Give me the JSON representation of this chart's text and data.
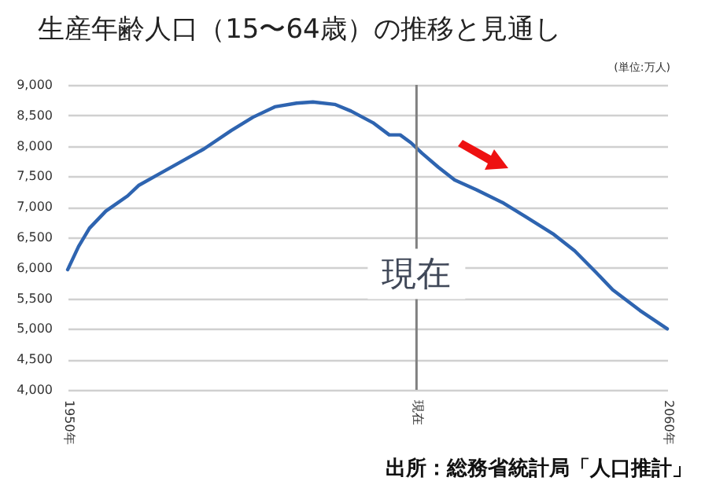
{
  "chart_data": {
    "type": "line",
    "title": "生産年齢人口（15〜64歳）の推移と見通し",
    "x": [
      1950,
      1952,
      1954,
      1957,
      1961,
      1963,
      1966,
      1970,
      1975,
      1980,
      1984,
      1988,
      1992,
      1995,
      1999,
      2002,
      2006,
      2009,
      2011,
      2013,
      2015,
      2018,
      2021,
      2025,
      2030,
      2034,
      2039,
      2043,
      2047,
      2050,
      2055,
      2060
    ],
    "series": [
      {
        "color": "#2e64b0",
        "values": [
          5970,
          6350,
          6650,
          6930,
          7180,
          7350,
          7500,
          7700,
          7950,
          8250,
          8470,
          8640,
          8700,
          8720,
          8680,
          8570,
          8380,
          8180,
          8180,
          8050,
          7880,
          7650,
          7440,
          7280,
          7060,
          6840,
          6560,
          6280,
          5920,
          5640,
          5300,
          5000
        ]
      }
    ],
    "xlim": [
      1950,
      2060
    ],
    "xticks": [
      {
        "value": 1950,
        "label": "1950年"
      },
      {
        "value": 2014,
        "label": "現在"
      },
      {
        "value": 2060,
        "label": "2060年"
      }
    ],
    "ylim": [
      4000,
      9000
    ],
    "yticks": [
      {
        "value": 4000,
        "label": "4,000"
      },
      {
        "value": 4500,
        "label": "4,500"
      },
      {
        "value": 5000,
        "label": "5,000"
      },
      {
        "value": 5500,
        "label": "5,500"
      },
      {
        "value": 6000,
        "label": "6,000"
      },
      {
        "value": 6500,
        "label": "6,500"
      },
      {
        "value": 7000,
        "label": "7,000"
      },
      {
        "value": 7500,
        "label": "7,500"
      },
      {
        "value": 8000,
        "label": "8,000"
      },
      {
        "value": 8500,
        "label": "8,500"
      },
      {
        "value": 9000,
        "label": "9,000"
      }
    ],
    "grid": "y",
    "ref_lines": [
      {
        "axis": "x",
        "value": 2014,
        "label": "現在",
        "color": "#808080"
      }
    ],
    "annotations": [
      "(単位:万人)",
      "出所：総務省統計局「人口推計」"
    ]
  }
}
